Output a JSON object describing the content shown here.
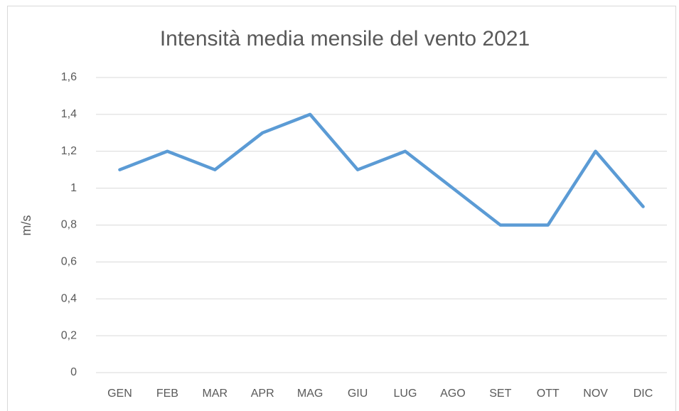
{
  "chart_data": {
    "type": "line",
    "title": "Intensità media mensile del vento 2021",
    "y_label": "m/s",
    "categories": [
      "GEN",
      "FEB",
      "MAR",
      "APR",
      "MAG",
      "GIU",
      "LUG",
      "AGO",
      "SET",
      "OTT",
      "NOV",
      "DIC"
    ],
    "series": [
      {
        "name": "m/s",
        "color": "#5b9bd5",
        "values": [
          1.1,
          1.2,
          1.1,
          1.3,
          1.4,
          1.1,
          1.2,
          1.0,
          0.8,
          0.8,
          1.2,
          0.9
        ]
      }
    ],
    "ylim": [
      0,
      1.6
    ],
    "yticks": [
      0,
      {
        "value": 0.2,
        "label": "0,2"
      },
      {
        "value": 0.4,
        "label": "0,4"
      },
      {
        "value": 0.6,
        "label": "0,6"
      },
      {
        "value": 0.8,
        "label": "0,8"
      },
      1,
      {
        "value": 1.2,
        "label": "1,2"
      },
      {
        "value": 1.4,
        "label": "1,4"
      },
      {
        "value": 1.6,
        "label": "1,6"
      }
    ],
    "grid": true
  }
}
